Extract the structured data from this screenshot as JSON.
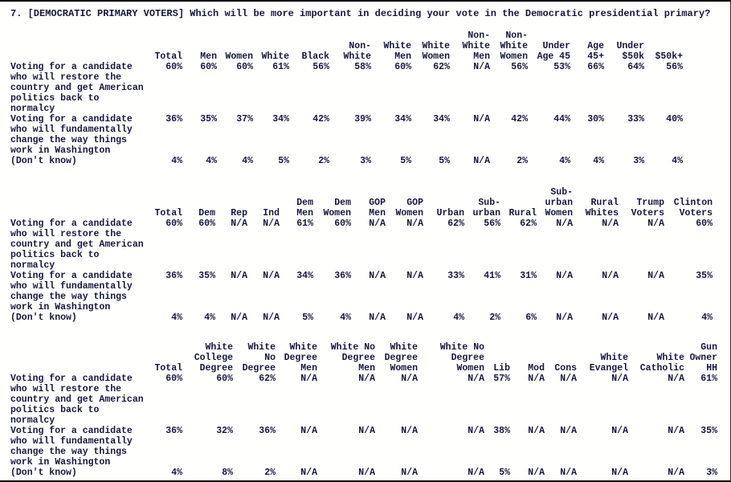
{
  "title": "7. [DEMOCRATIC PRIMARY VOTERS] Which will be more important in deciding your vote in the Democratic presidential primary?",
  "tables": [
    {
      "columns": [
        {
          "name": "Total",
          "lines": [
            "Total"
          ]
        },
        {
          "name": "Men",
          "lines": [
            "Men"
          ]
        },
        {
          "name": "Women",
          "lines": [
            "Women"
          ]
        },
        {
          "name": "White",
          "lines": [
            "White"
          ]
        },
        {
          "name": "Black",
          "lines": [
            "Black"
          ]
        },
        {
          "name": "Non-White",
          "lines": [
            "Non-",
            "White"
          ]
        },
        {
          "name": "White Men",
          "lines": [
            "White",
            "Men"
          ]
        },
        {
          "name": "White Women",
          "lines": [
            "White",
            "Women"
          ]
        },
        {
          "name": "Non-White Men",
          "lines": [
            "Non-",
            "White",
            "Men"
          ]
        },
        {
          "name": "Non-White Women",
          "lines": [
            "Non-",
            "White",
            "Women"
          ]
        },
        {
          "name": "Under Age 45",
          "lines": [
            "Under",
            "Age 45"
          ]
        },
        {
          "name": "Age 45+",
          "lines": [
            "Age",
            "45+"
          ]
        },
        {
          "name": "Under $50k",
          "lines": [
            "Under",
            "$50k"
          ]
        },
        {
          "name": "$50k+",
          "lines": [
            "$50k+"
          ]
        }
      ],
      "rows": [
        {
          "label_lines": [
            "Voting for a candidate",
            "who will restore the",
            "country and get American",
            "politics back to",
            "normalcy"
          ],
          "values": [
            "60%",
            "60%",
            "60%",
            "61%",
            "56%",
            "58%",
            "60%",
            "62%",
            "N/A",
            "56%",
            "53%",
            "66%",
            "64%",
            "56%"
          ]
        },
        {
          "label_lines": [
            "Voting for a candidate",
            "who will fundamentally",
            "change the way things",
            "work in Washington"
          ],
          "values": [
            "36%",
            "35%",
            "37%",
            "34%",
            "42%",
            "39%",
            "34%",
            "34%",
            "N/A",
            "42%",
            "44%",
            "30%",
            "33%",
            "40%"
          ]
        },
        {
          "label_lines": [
            "(Don't know)"
          ],
          "values": [
            "4%",
            "4%",
            "4%",
            "5%",
            "2%",
            "3%",
            "5%",
            "5%",
            "N/A",
            "2%",
            "4%",
            "4%",
            "3%",
            "4%"
          ]
        }
      ]
    },
    {
      "columns": [
        {
          "name": "Total",
          "lines": [
            "Total"
          ]
        },
        {
          "name": "Dem",
          "lines": [
            "Dem"
          ]
        },
        {
          "name": "Rep",
          "lines": [
            "Rep"
          ]
        },
        {
          "name": "Ind",
          "lines": [
            "Ind"
          ]
        },
        {
          "name": "Dem Men",
          "lines": [
            "Dem",
            "Men"
          ]
        },
        {
          "name": "Dem Women",
          "lines": [
            "Dem",
            "Women"
          ]
        },
        {
          "name": "GOP Men",
          "lines": [
            "GOP",
            "Men"
          ]
        },
        {
          "name": "GOP Women",
          "lines": [
            "GOP",
            "Women"
          ]
        },
        {
          "name": "Urban",
          "lines": [
            "Urban"
          ]
        },
        {
          "name": "Suburban",
          "lines": [
            "Sub-",
            "urban"
          ]
        },
        {
          "name": "Rural",
          "lines": [
            "Rural"
          ]
        },
        {
          "name": "Suburban Women",
          "lines": [
            "Sub-",
            "urban",
            "Women"
          ]
        },
        {
          "name": "Rural Whites",
          "lines": [
            "Rural",
            "Whites"
          ]
        },
        {
          "name": "Trump Voters",
          "lines": [
            "Trump",
            "Voters"
          ]
        },
        {
          "name": "Clinton Voters",
          "lines": [
            "Clinton",
            "Voters"
          ]
        }
      ],
      "rows": [
        {
          "label_lines": [
            "Voting for a candidate",
            "who will restore the",
            "country and get American",
            "politics back to",
            "normalcy"
          ],
          "values": [
            "60%",
            "60%",
            "N/A",
            "N/A",
            "61%",
            "60%",
            "N/A",
            "N/A",
            "62%",
            "56%",
            "62%",
            "N/A",
            "N/A",
            "N/A",
            "60%"
          ]
        },
        {
          "label_lines": [
            "Voting for a candidate",
            "who will fundamentally",
            "change the way things",
            "work in Washington"
          ],
          "values": [
            "36%",
            "35%",
            "N/A",
            "N/A",
            "34%",
            "36%",
            "N/A",
            "N/A",
            "33%",
            "41%",
            "31%",
            "N/A",
            "N/A",
            "N/A",
            "35%"
          ]
        },
        {
          "label_lines": [
            "(Don't know)"
          ],
          "values": [
            "4%",
            "4%",
            "N/A",
            "N/A",
            "5%",
            "4%",
            "N/A",
            "N/A",
            "4%",
            "2%",
            "6%",
            "N/A",
            "N/A",
            "N/A",
            "4%"
          ]
        }
      ]
    },
    {
      "columns": [
        {
          "name": "Total",
          "lines": [
            "Total"
          ]
        },
        {
          "name": "White College Degree",
          "lines": [
            "White",
            "College",
            "Degree"
          ]
        },
        {
          "name": "White No Degree",
          "lines": [
            "White",
            "No",
            "Degree"
          ]
        },
        {
          "name": "White Degree Men",
          "lines": [
            "White",
            "Degree",
            "Men"
          ]
        },
        {
          "name": "White No Degree Men",
          "lines": [
            "White No",
            "Degree",
            "Men"
          ]
        },
        {
          "name": "White Degree Women",
          "lines": [
            "White",
            "Degree",
            "Women"
          ]
        },
        {
          "name": "White No Degree Women",
          "lines": [
            "White No",
            "Degree",
            "Women"
          ]
        },
        {
          "name": "Lib",
          "lines": [
            "Lib"
          ]
        },
        {
          "name": "Mod",
          "lines": [
            "Mod"
          ]
        },
        {
          "name": "Cons",
          "lines": [
            "Cons"
          ]
        },
        {
          "name": "White Evangel",
          "lines": [
            "White",
            "Evangel"
          ]
        },
        {
          "name": "White Catholic",
          "lines": [
            "White",
            "Catholic"
          ]
        },
        {
          "name": "Gun Owner HH",
          "lines": [
            "Gun",
            "Owner",
            "HH"
          ]
        }
      ],
      "rows": [
        {
          "label_lines": [
            "Voting for a candidate",
            "who will restore the",
            "country and get American",
            "politics back to",
            "normalcy"
          ],
          "values": [
            "60%",
            "60%",
            "62%",
            "N/A",
            "N/A",
            "N/A",
            "N/A",
            "57%",
            "N/A",
            "N/A",
            "N/A",
            "N/A",
            "61%"
          ]
        },
        {
          "label_lines": [
            "Voting for a candidate",
            "who will fundamentally",
            "change the way things",
            "work in Washington"
          ],
          "values": [
            "36%",
            "32%",
            "36%",
            "N/A",
            "N/A",
            "N/A",
            "N/A",
            "38%",
            "N/A",
            "N/A",
            "N/A",
            "N/A",
            "35%"
          ]
        },
        {
          "label_lines": [
            "(Don't know)"
          ],
          "values": [
            "4%",
            "8%",
            "2%",
            "N/A",
            "N/A",
            "N/A",
            "N/A",
            "5%",
            "N/A",
            "N/A",
            "N/A",
            "N/A",
            "3%"
          ]
        }
      ]
    }
  ]
}
